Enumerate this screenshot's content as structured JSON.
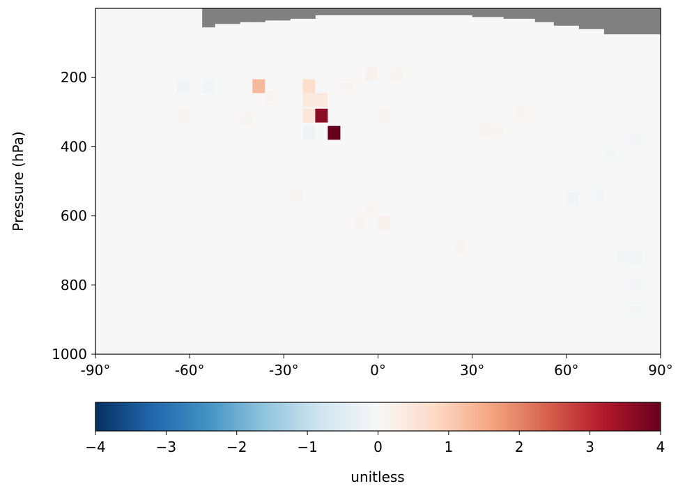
{
  "chart_data": [
    {
      "type": "heatmap",
      "title": "",
      "xlabel": "",
      "ylabel": "Pressure (hPa)",
      "xlim": [
        -90,
        90
      ],
      "ylim": [
        1000,
        0
      ],
      "x_ticks": [
        -90,
        -60,
        -30,
        0,
        30,
        60,
        90
      ],
      "x_tick_labels": [
        "-90°",
        "-60°",
        "-30°",
        "0°",
        "30°",
        "60°",
        "90°"
      ],
      "y_ticks": [
        200,
        400,
        600,
        800,
        1000
      ],
      "y_tick_labels": [
        "200",
        "400",
        "600",
        "800",
        "1000"
      ],
      "colormap": "RdBu_r",
      "vmin": -4,
      "vmax": 4,
      "background_value": 0,
      "missing_color": "#808080",
      "missing_top_boundary": [
        {
          "lat_from": -90,
          "lat_to": -56,
          "p_below": 0
        },
        {
          "lat_from": -56,
          "lat_to": -52,
          "p_below": 55
        },
        {
          "lat_from": -52,
          "lat_to": -48,
          "p_below": 45
        },
        {
          "lat_from": -48,
          "lat_to": -44,
          "p_below": 45
        },
        {
          "lat_from": -44,
          "lat_to": -40,
          "p_below": 40
        },
        {
          "lat_from": -40,
          "lat_to": -36,
          "p_below": 40
        },
        {
          "lat_from": -36,
          "lat_to": -32,
          "p_below": 35
        },
        {
          "lat_from": -32,
          "lat_to": -28,
          "p_below": 35
        },
        {
          "lat_from": -28,
          "lat_to": -24,
          "p_below": 30
        },
        {
          "lat_from": -24,
          "lat_to": -20,
          "p_below": 30
        },
        {
          "lat_from": -20,
          "lat_to": 30,
          "p_below": 20
        },
        {
          "lat_from": 30,
          "lat_to": 40,
          "p_below": 25
        },
        {
          "lat_from": 40,
          "lat_to": 50,
          "p_below": 30
        },
        {
          "lat_from": 50,
          "lat_to": 56,
          "p_below": 40
        },
        {
          "lat_from": 56,
          "lat_to": 64,
          "p_below": 50
        },
        {
          "lat_from": 64,
          "lat_to": 72,
          "p_below": 60
        },
        {
          "lat_from": 72,
          "lat_to": 90,
          "p_below": 75
        }
      ],
      "cells": [
        {
          "lat": -38,
          "p": 225,
          "value": 1.3
        },
        {
          "lat": -22,
          "p": 225,
          "value": 0.7
        },
        {
          "lat": -62,
          "p": 225,
          "value": -0.15
        },
        {
          "lat": -54,
          "p": 225,
          "value": -0.1
        },
        {
          "lat": -22,
          "p": 265,
          "value": 0.4
        },
        {
          "lat": -18,
          "p": 265,
          "value": 0.4
        },
        {
          "lat": -22,
          "p": 310,
          "value": 0.5
        },
        {
          "lat": -18,
          "p": 310,
          "value": 3.6
        },
        {
          "lat": -14,
          "p": 360,
          "value": 4.0
        },
        {
          "lat": -22,
          "p": 360,
          "value": -0.2
        },
        {
          "lat": -2,
          "p": 190,
          "value": 0.15
        },
        {
          "lat": 6,
          "p": 190,
          "value": 0.1
        },
        {
          "lat": 2,
          "p": 310,
          "value": 0.05
        },
        {
          "lat": -10,
          "p": 225,
          "value": 0.1
        },
        {
          "lat": -34,
          "p": 260,
          "value": 0.1
        },
        {
          "lat": 46,
          "p": 300,
          "value": 0.1
        },
        {
          "lat": 38,
          "p": 355,
          "value": 0.08
        },
        {
          "lat": 62,
          "p": 550,
          "value": -0.12
        },
        {
          "lat": 70,
          "p": 540,
          "value": -0.08
        },
        {
          "lat": 74,
          "p": 420,
          "value": -0.06
        },
        {
          "lat": 82,
          "p": 380,
          "value": -0.08
        },
        {
          "lat": 82,
          "p": 720,
          "value": -0.1
        },
        {
          "lat": 82,
          "p": 800,
          "value": -0.08
        },
        {
          "lat": 82,
          "p": 870,
          "value": -0.06
        },
        {
          "lat": 78,
          "p": 720,
          "value": -0.06
        },
        {
          "lat": -2,
          "p": 580,
          "value": 0.1
        },
        {
          "lat": 2,
          "p": 620,
          "value": 0.15
        },
        {
          "lat": -6,
          "p": 620,
          "value": 0.1
        },
        {
          "lat": -26,
          "p": 540,
          "value": 0.05
        },
        {
          "lat": 26,
          "p": 690,
          "value": 0.05
        },
        {
          "lat": -42,
          "p": 320,
          "value": 0.05
        },
        {
          "lat": -62,
          "p": 310,
          "value": 0.06
        },
        {
          "lat": 34,
          "p": 350,
          "value": 0.05
        }
      ]
    },
    {
      "type": "colorbar",
      "colormap": "RdBu_r",
      "range": [
        -4,
        4
      ],
      "ticks": [
        -4,
        -3,
        -2,
        -1,
        0,
        1,
        2,
        3,
        4
      ],
      "tick_labels": [
        "−4",
        "−3",
        "−2",
        "−1",
        "0",
        "1",
        "2",
        "3",
        "4"
      ],
      "label": "unitless"
    }
  ]
}
